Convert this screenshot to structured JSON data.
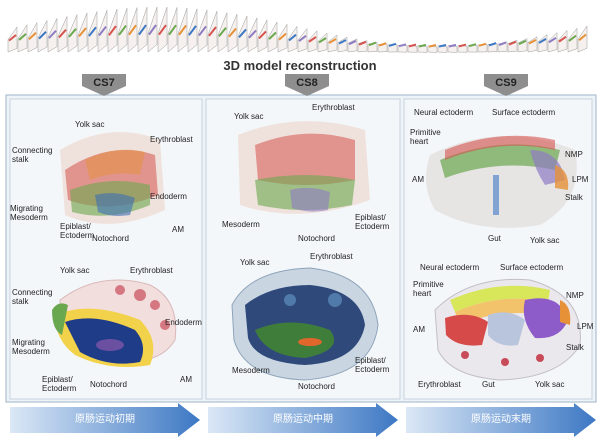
{
  "title": "3D model reconstruction",
  "stages": [
    {
      "name": "CS7",
      "phase": "原肠运动初期",
      "top": [
        "Yolk sac",
        "Erythroblast",
        "Connecting stalk",
        "Endoderm",
        "Migrating Mesoderm",
        "Epiblast/ Ectoderm",
        "Notochord",
        "AM"
      ],
      "bottom": [
        "Yolk sac",
        "Erythroblast",
        "Connecting stalk",
        "Endoderm",
        "Migrating Mesoderm",
        "Epiblast/ Ectoderm",
        "Notochord",
        "AM"
      ]
    },
    {
      "name": "CS8",
      "phase": "原肠运动中期",
      "top": [
        "Erythroblast",
        "Yolk sac",
        "Mesoderm",
        "Notochord",
        "Epiblast/ Ectoderm"
      ],
      "bottom": [
        "Yolk sac",
        "Erythroblast",
        "Mesoderm",
        "Notochord",
        "Epiblast/ Ectoderm"
      ]
    },
    {
      "name": "CS9",
      "phase": "原肠运动末期",
      "top": [
        "Neural ectoderm",
        "Surface ectoderm",
        "Primitive heart",
        "NMP",
        "AM",
        "LPM",
        "Stalk",
        "Gut",
        "Yolk sac"
      ],
      "bottom": [
        "Neural ectoderm",
        "Surface ectoderm",
        "Primitive heart",
        "NMP",
        "AM",
        "LPM",
        "Stalk",
        "Erythroblast",
        "Gut",
        "Yolk sac"
      ]
    }
  ]
}
